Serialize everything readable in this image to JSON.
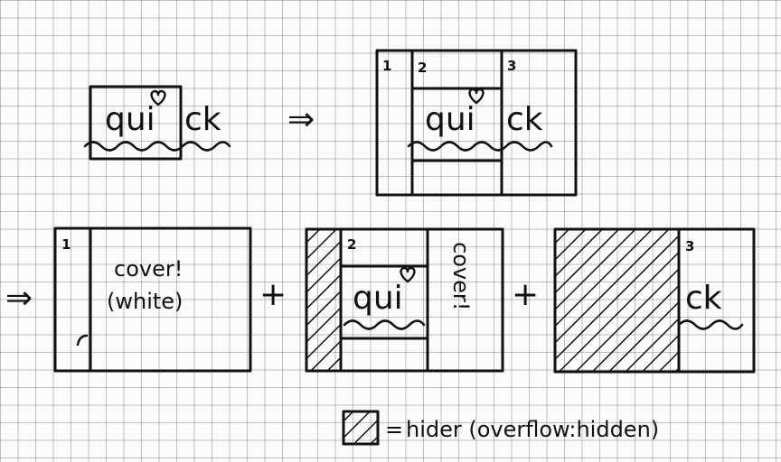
{
  "word_part1": "qui",
  "word_part2": "ck",
  "panel_numbers": [
    "1",
    "2",
    "3"
  ],
  "cover_text": "cover!",
  "white_text": "(white)",
  "cover_vertical": "cover!",
  "plus": "+",
  "arrow": "⇒",
  "legend_equals": "=",
  "legend_text": "hider (overflow:hidden)"
}
